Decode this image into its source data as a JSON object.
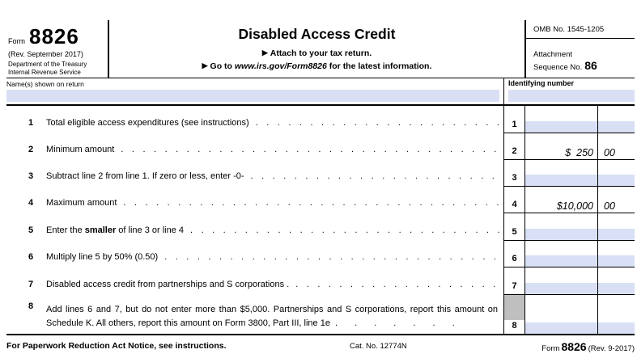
{
  "form": {
    "form_label": "Form",
    "form_number": "8826",
    "revision": "(Rev. September 2017)",
    "agency_line1": "Department of the Treasury",
    "agency_line2": "Internal Revenue Service",
    "title": "Disabled Access Credit",
    "attach_note": "Attach to your tax return.",
    "goto_pre": "Go to ",
    "goto_url": "www.irs.gov/Form8826",
    "goto_post": " for the latest information.",
    "omb": "OMB No. 1545-1205",
    "attachment_label": "Attachment",
    "sequence_label": "Sequence No.",
    "sequence_number": "86"
  },
  "name_row": {
    "name_label": "Name(s) shown on return",
    "name_value": "",
    "id_label": "Identifying number",
    "id_value": ""
  },
  "lines": [
    {
      "num": "1",
      "pre": "Total eligible access expenditures (see instructions)",
      "bold": "",
      "post": "",
      "box": "1",
      "amount": "",
      "cents": ""
    },
    {
      "num": "2",
      "pre": "Minimum amount",
      "bold": "",
      "post": "",
      "box": "2",
      "amount": "$  250",
      "cents": "00"
    },
    {
      "num": "3",
      "pre": "Subtract line 2 from line 1. If zero or less, enter -0-",
      "bold": "",
      "post": "",
      "box": "3",
      "amount": "",
      "cents": ""
    },
    {
      "num": "4",
      "pre": "Maximum amount",
      "bold": "",
      "post": "",
      "box": "4",
      "amount": "$10,000",
      "cents": "00"
    },
    {
      "num": "5",
      "pre": "Enter the ",
      "bold": "smaller",
      "post": " of line 3 or line 4",
      "box": "5",
      "amount": "",
      "cents": ""
    },
    {
      "num": "6",
      "pre": "Multiply line 5 by 50% (0.50)",
      "bold": "",
      "post": "",
      "box": "6",
      "amount": "",
      "cents": ""
    },
    {
      "num": "7",
      "pre": "Disabled access credit from partnerships and S corporations .",
      "bold": "",
      "post": "",
      "box": "7",
      "amount": "",
      "cents": ""
    },
    {
      "num": "8",
      "pre": "Add lines 6 and 7, but do not enter more than $5,000. Partnerships and S corporations, report this amount on Schedule K. All others, report this amount on Form 3800, Part III, line 1e",
      "bold": "",
      "post": "",
      "box": "8",
      "amount": "",
      "cents": ""
    }
  ],
  "footer": {
    "notice": "For Paperwork Reduction Act Notice, see instructions.",
    "cat_no": "Cat. No. 12774N",
    "form_word": "Form",
    "form_number": "8826",
    "revision": "(Rev. 9-2017)"
  },
  "decor": {
    "arrow": "▶",
    "dots_long": "........................................................................",
    "dots_short": ". . . . . . ."
  },
  "colors": {
    "field_blue": "#d9e0f5",
    "shade_gray": "#bfbfbf"
  }
}
